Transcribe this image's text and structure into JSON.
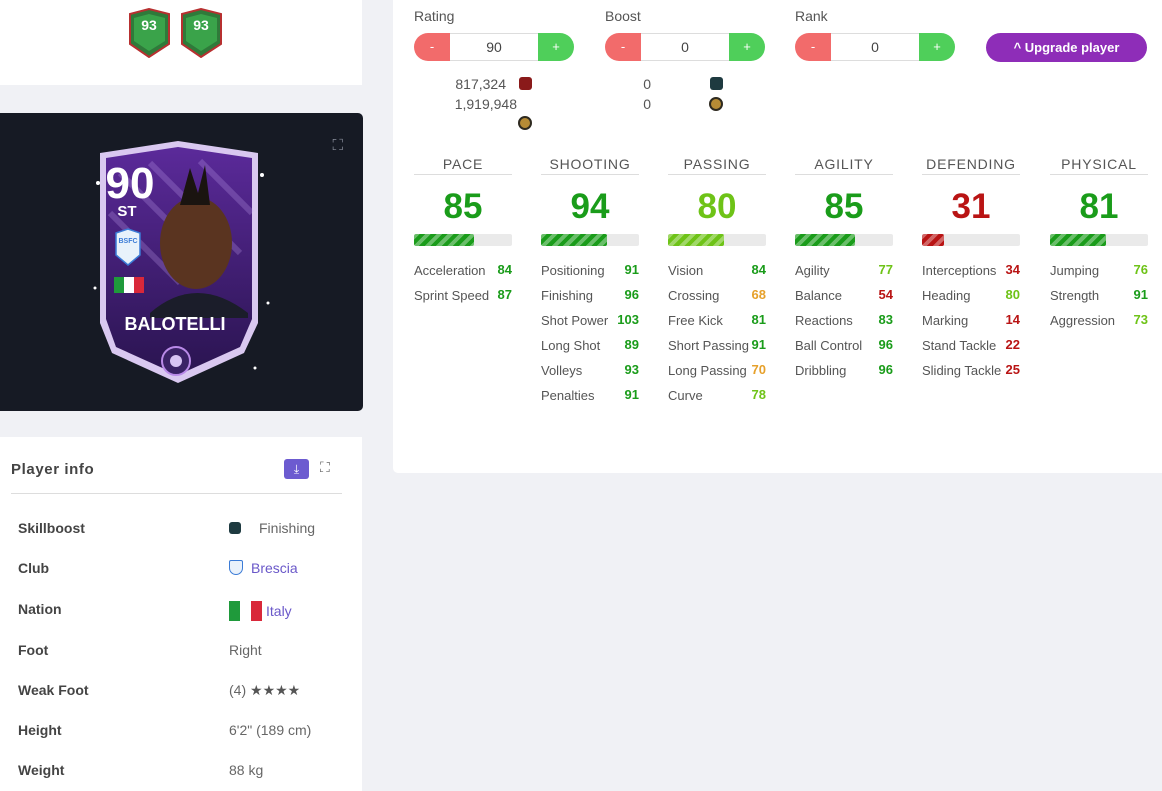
{
  "top_cards": {
    "rating_1": "93",
    "rating_2": "93"
  },
  "player_card": {
    "rating": "90",
    "position": "ST",
    "club_code": "BSFC",
    "name": "BALOTELLI"
  },
  "controls": {
    "rating": {
      "label": "Rating",
      "value": "90",
      "minus": "-",
      "plus": "+"
    },
    "boost": {
      "label": "Boost",
      "value": "0",
      "minus": "-",
      "plus": "+"
    },
    "rank": {
      "label": "Rank",
      "value": "0",
      "minus": "-",
      "plus": "+"
    },
    "upgrade_label": "^ Upgrade player"
  },
  "costs": {
    "rating_xp": "817,324",
    "rating_coins": "1,919,948",
    "boost_skill": "0",
    "boost_coins": "0"
  },
  "stats": [
    {
      "name": "PACE",
      "value": "85",
      "fill": 0.61,
      "tone": "g",
      "subs": [
        {
          "name": "Acceleration",
          "value": "84",
          "tone": "g"
        },
        {
          "name": "Sprint Speed",
          "value": "87",
          "tone": "g"
        }
      ]
    },
    {
      "name": "SHOOTING",
      "value": "94",
      "fill": 0.67,
      "tone": "g",
      "subs": [
        {
          "name": "Positioning",
          "value": "91",
          "tone": "g"
        },
        {
          "name": "Finishing",
          "value": "96",
          "tone": "g"
        },
        {
          "name": "Shot Power",
          "value": "103",
          "tone": "g"
        },
        {
          "name": "Long Shot",
          "value": "89",
          "tone": "g"
        },
        {
          "name": "Volleys",
          "value": "93",
          "tone": "g"
        },
        {
          "name": "Penalties",
          "value": "91",
          "tone": "g"
        }
      ]
    },
    {
      "name": "PASSING",
      "value": "80",
      "fill": 0.57,
      "tone": "lg",
      "subs": [
        {
          "name": "Vision",
          "value": "84",
          "tone": "g"
        },
        {
          "name": "Crossing",
          "value": "68",
          "tone": "o"
        },
        {
          "name": "Free Kick",
          "value": "81",
          "tone": "g"
        },
        {
          "name": "Short Passing",
          "value": "91",
          "tone": "g"
        },
        {
          "name": "Long Passing",
          "value": "70",
          "tone": "o"
        },
        {
          "name": "Curve",
          "value": "78",
          "tone": "lg"
        }
      ]
    },
    {
      "name": "AGILITY",
      "value": "85",
      "fill": 0.61,
      "tone": "g",
      "subs": [
        {
          "name": "Agility",
          "value": "77",
          "tone": "lg"
        },
        {
          "name": "Balance",
          "value": "54",
          "tone": "r"
        },
        {
          "name": "Reactions",
          "value": "83",
          "tone": "g"
        },
        {
          "name": "Ball Control",
          "value": "96",
          "tone": "g"
        },
        {
          "name": "Dribbling",
          "value": "96",
          "tone": "g"
        }
      ]
    },
    {
      "name": "DEFENDING",
      "value": "31",
      "fill": 0.22,
      "tone": "r",
      "subs": [
        {
          "name": "Interceptions",
          "value": "34",
          "tone": "r"
        },
        {
          "name": "Heading",
          "value": "80",
          "tone": "lg"
        },
        {
          "name": "Marking",
          "value": "14",
          "tone": "r"
        },
        {
          "name": "Stand Tackle",
          "value": "22",
          "tone": "r"
        },
        {
          "name": "Sliding Tackle",
          "value": "25",
          "tone": "r"
        }
      ]
    },
    {
      "name": "PHYSICAL",
      "value": "81",
      "fill": 0.57,
      "tone": "g",
      "subs": [
        {
          "name": "Jumping",
          "value": "76",
          "tone": "lg"
        },
        {
          "name": "Strength",
          "value": "91",
          "tone": "g"
        },
        {
          "name": "Aggression",
          "value": "73",
          "tone": "lg"
        }
      ]
    }
  ],
  "player_info": {
    "title": "Player info",
    "rows": [
      {
        "key": "Skillboost",
        "value": "Finishing"
      },
      {
        "key": "Club",
        "value": "Brescia"
      },
      {
        "key": "Nation",
        "value": "Italy"
      },
      {
        "key": "Foot",
        "value": "Right"
      },
      {
        "key": "Weak Foot",
        "value": "(4)",
        "stars": "★★★★"
      },
      {
        "key": "Height",
        "value": "6'2\" (189 cm)"
      },
      {
        "key": "Weight",
        "value": "88 kg"
      }
    ]
  },
  "colors": {
    "accent": "#8e2db8",
    "minus": "#f26b6b",
    "plus": "#4fcf5a",
    "green": "#1a9c1a",
    "light_green": "#6ec317",
    "orange": "#e6a02a",
    "red": "#b91414",
    "link": "#6a58c9"
  }
}
